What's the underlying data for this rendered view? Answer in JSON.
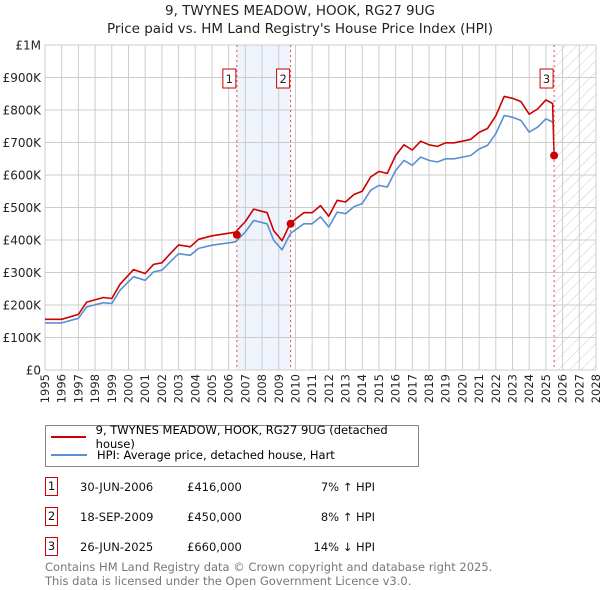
{
  "title": "9, TWYNES MEADOW, HOOK, RG27 9UG",
  "subtitle": "Price paid vs. HM Land Registry's House Price Index (HPI)",
  "chart_data": {
    "type": "line",
    "xlim": [
      1995,
      2028
    ],
    "ylim": [
      0,
      1000000
    ],
    "x_ticks": [
      "1995",
      "1996",
      "1997",
      "1998",
      "1999",
      "2000",
      "2001",
      "2002",
      "2003",
      "2004",
      "2005",
      "2006",
      "2007",
      "2008",
      "2009",
      "2010",
      "2011",
      "2012",
      "2013",
      "2014",
      "2015",
      "2016",
      "2017",
      "2018",
      "2019",
      "2020",
      "2021",
      "2022",
      "2023",
      "2024",
      "2025",
      "2026",
      "2027",
      "2028"
    ],
    "y_ticks": [
      {
        "v": 0,
        "label": "£0"
      },
      {
        "v": 100000,
        "label": "£100K"
      },
      {
        "v": 200000,
        "label": "£200K"
      },
      {
        "v": 300000,
        "label": "£300K"
      },
      {
        "v": 400000,
        "label": "£400K"
      },
      {
        "v": 500000,
        "label": "£500K"
      },
      {
        "v": 600000,
        "label": "£600K"
      },
      {
        "v": 700000,
        "label": "£700K"
      },
      {
        "v": 800000,
        "label": "£800K"
      },
      {
        "v": 900000,
        "label": "£900K"
      },
      {
        "v": 1000000,
        "label": "£1M"
      }
    ],
    "grid": true,
    "series": [
      {
        "name": "9, TWYNES MEADOW, HOOK, RG27 9UG (detached house)",
        "color": "#cc0000",
        "x": [
          1995,
          1996,
          1997,
          1997.5,
          1998.5,
          1999,
          1999.5,
          2000.3,
          2001,
          2001.5,
          2002,
          2002.5,
          2003,
          2003.7,
          2004.2,
          2005,
          2006.4,
          2007,
          2007.5,
          2008.3,
          2008.7,
          2009.2,
          2009.7,
          2010.5,
          2011,
          2011.5,
          2012,
          2012.5,
          2013,
          2013.5,
          2014,
          2014.5,
          2015,
          2015.5,
          2016,
          2016.5,
          2017,
          2017.5,
          2018,
          2018.5,
          2019,
          2019.5,
          2020,
          2020.5,
          2021,
          2021.5,
          2022,
          2022.5,
          2023,
          2023.5,
          2024,
          2024.5,
          2025,
          2025.4,
          2025.49
        ],
        "values": [
          156,
          156,
          171,
          209,
          223,
          220,
          264,
          309,
          297,
          325,
          330,
          358,
          385,
          379,
          402,
          413,
          424,
          457,
          495,
          484,
          429,
          398,
          452,
          484,
          484,
          506,
          473,
          522,
          517,
          540,
          550,
          594,
          611,
          605,
          660,
          693,
          677,
          704,
          693,
          688,
          699,
          699,
          704,
          710,
          731,
          743,
          782,
          842,
          836,
          826,
          787,
          803,
          831,
          820,
          660
        ]
      },
      {
        "name": "HPI: Average price, detached house, Hart",
        "color": "#5b8fd0",
        "x": [
          1995,
          1996,
          1997,
          1997.5,
          1998.5,
          1999,
          1999.5,
          2000.3,
          2001,
          2001.5,
          2002,
          2002.5,
          2003,
          2003.7,
          2004.2,
          2005,
          2006.4,
          2007,
          2007.5,
          2008.3,
          2008.7,
          2009.2,
          2009.7,
          2010.5,
          2011,
          2011.5,
          2012,
          2012.5,
          2013,
          2013.5,
          2014,
          2014.5,
          2015,
          2015.5,
          2016,
          2016.5,
          2017,
          2017.5,
          2018,
          2018.5,
          2019,
          2019.5,
          2020,
          2020.5,
          2021,
          2021.5,
          2022,
          2022.5,
          2023,
          2023.5,
          2024,
          2024.5,
          2025,
          2025.4
        ],
        "values": [
          145,
          145,
          159,
          194,
          207,
          205,
          246,
          287,
          276,
          302,
          307,
          333,
          358,
          353,
          374,
          384,
          394,
          425,
          460,
          450,
          399,
          370,
          420,
          450,
          450,
          471,
          440,
          486,
          481,
          502,
          512,
          553,
          568,
          563,
          614,
          645,
          630,
          655,
          645,
          640,
          650,
          650,
          655,
          660,
          680,
          691,
          727,
          783,
          778,
          768,
          732,
          747,
          773,
          763
        ]
      }
    ],
    "value_unit": "thousands GBP",
    "sales": [
      {
        "label": "1",
        "x": 2006.49,
        "value": 416000,
        "date": "30-JUN-2006",
        "price": "£416,000",
        "hpi": "7% ↑ HPI"
      },
      {
        "label": "2",
        "x": 2009.71,
        "value": 450000,
        "date": "18-SEP-2009",
        "price": "£450,000",
        "hpi": "8% ↑ HPI"
      },
      {
        "label": "3",
        "x": 2025.49,
        "value": 660000,
        "date": "26-JUN-2025",
        "price": "£660,000",
        "hpi": "14% ↓ HPI"
      }
    ],
    "shaded_range": [
      2006.49,
      2009.71
    ],
    "forecast_hatch_from": 2025.49,
    "legend_placement": "below"
  },
  "legend": {
    "red": "9, TWYNES MEADOW, HOOK, RG27 9UG (detached house)",
    "blue": "HPI: Average price, detached house, Hart"
  },
  "footer": {
    "line1": "Contains HM Land Registry data © Crown copyright and database right 2025.",
    "line2": "This data is licensed under the Open Government Licence v3.0."
  }
}
